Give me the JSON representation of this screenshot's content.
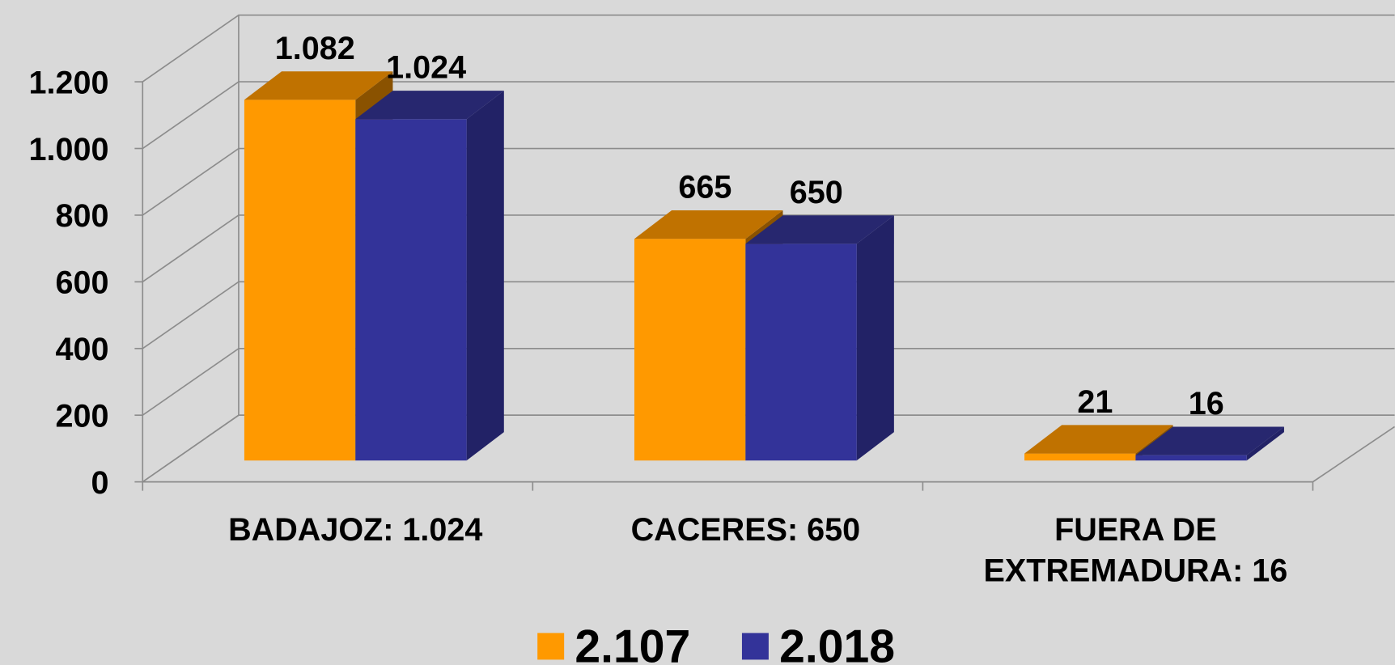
{
  "chart_data": {
    "type": "bar3d",
    "categories": [
      "BADAJOZ: 1.024",
      "CACERES: 650",
      "FUERA DE EXTREMADURA: 16"
    ],
    "series": [
      {
        "name": "2.107",
        "color": "#FF9900",
        "top_color": "#C07200",
        "side_color": "#8A5200",
        "values": [
          1082,
          665,
          21
        ],
        "value_labels": [
          "1.082",
          "665",
          "21"
        ]
      },
      {
        "name": "2.018",
        "color": "#333399",
        "top_color": "#27276F",
        "side_color": "#222266",
        "values": [
          1024,
          650,
          16
        ],
        "value_labels": [
          "1.024",
          "650",
          "16"
        ]
      }
    ],
    "ylim": [
      0,
      1200
    ],
    "yticks": [
      0,
      200,
      400,
      600,
      800,
      {
        "value": 1000,
        "label": "1.000"
      },
      {
        "value": 1200,
        "label": "1.200"
      }
    ],
    "grid": true,
    "legend": "bottom"
  }
}
